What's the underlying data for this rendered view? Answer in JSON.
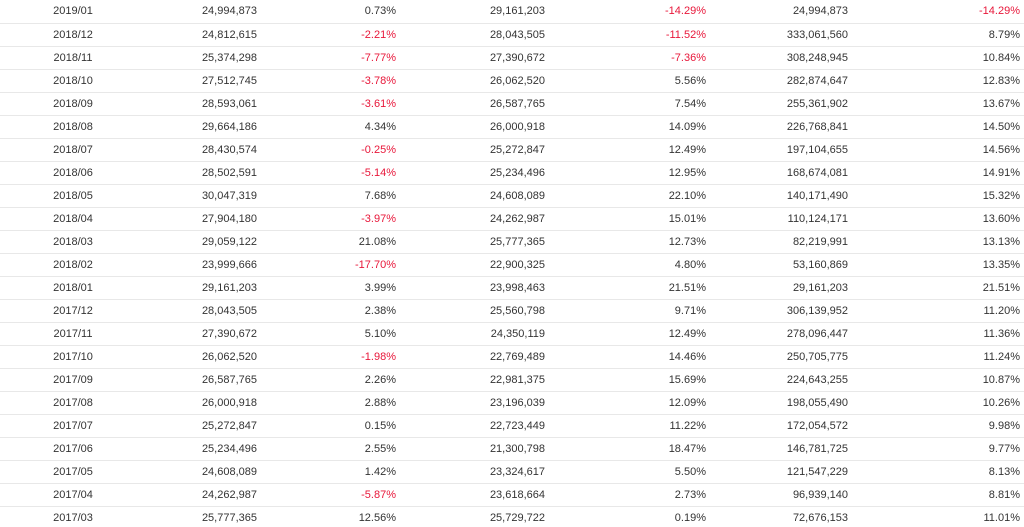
{
  "colors": {
    "negative": "#e8173a",
    "text": "#333333",
    "row_border": "#e8e8e8"
  },
  "table": {
    "rows": [
      {
        "month": "2019/01",
        "v1": "24,994,873",
        "p1": "0.73%",
        "v2": "29,161,203",
        "p2": "-14.29%",
        "v3": "24,994,873",
        "p3": "-14.29%"
      },
      {
        "month": "2018/12",
        "v1": "24,812,615",
        "p1": "-2.21%",
        "v2": "28,043,505",
        "p2": "-11.52%",
        "v3": "333,061,560",
        "p3": "8.79%"
      },
      {
        "month": "2018/11",
        "v1": "25,374,298",
        "p1": "-7.77%",
        "v2": "27,390,672",
        "p2": "-7.36%",
        "v3": "308,248,945",
        "p3": "10.84%"
      },
      {
        "month": "2018/10",
        "v1": "27,512,745",
        "p1": "-3.78%",
        "v2": "26,062,520",
        "p2": "5.56%",
        "v3": "282,874,647",
        "p3": "12.83%"
      },
      {
        "month": "2018/09",
        "v1": "28,593,061",
        "p1": "-3.61%",
        "v2": "26,587,765",
        "p2": "7.54%",
        "v3": "255,361,902",
        "p3": "13.67%"
      },
      {
        "month": "2018/08",
        "v1": "29,664,186",
        "p1": "4.34%",
        "v2": "26,000,918",
        "p2": "14.09%",
        "v3": "226,768,841",
        "p3": "14.50%"
      },
      {
        "month": "2018/07",
        "v1": "28,430,574",
        "p1": "-0.25%",
        "v2": "25,272,847",
        "p2": "12.49%",
        "v3": "197,104,655",
        "p3": "14.56%"
      },
      {
        "month": "2018/06",
        "v1": "28,502,591",
        "p1": "-5.14%",
        "v2": "25,234,496",
        "p2": "12.95%",
        "v3": "168,674,081",
        "p3": "14.91%"
      },
      {
        "month": "2018/05",
        "v1": "30,047,319",
        "p1": "7.68%",
        "v2": "24,608,089",
        "p2": "22.10%",
        "v3": "140,171,490",
        "p3": "15.32%"
      },
      {
        "month": "2018/04",
        "v1": "27,904,180",
        "p1": "-3.97%",
        "v2": "24,262,987",
        "p2": "15.01%",
        "v3": "110,124,171",
        "p3": "13.60%"
      },
      {
        "month": "2018/03",
        "v1": "29,059,122",
        "p1": "21.08%",
        "v2": "25,777,365",
        "p2": "12.73%",
        "v3": "82,219,991",
        "p3": "13.13%"
      },
      {
        "month": "2018/02",
        "v1": "23,999,666",
        "p1": "-17.70%",
        "v2": "22,900,325",
        "p2": "4.80%",
        "v3": "53,160,869",
        "p3": "13.35%"
      },
      {
        "month": "2018/01",
        "v1": "29,161,203",
        "p1": "3.99%",
        "v2": "23,998,463",
        "p2": "21.51%",
        "v3": "29,161,203",
        "p3": "21.51%"
      },
      {
        "month": "2017/12",
        "v1": "28,043,505",
        "p1": "2.38%",
        "v2": "25,560,798",
        "p2": "9.71%",
        "v3": "306,139,952",
        "p3": "11.20%"
      },
      {
        "month": "2017/11",
        "v1": "27,390,672",
        "p1": "5.10%",
        "v2": "24,350,119",
        "p2": "12.49%",
        "v3": "278,096,447",
        "p3": "11.36%"
      },
      {
        "month": "2017/10",
        "v1": "26,062,520",
        "p1": "-1.98%",
        "v2": "22,769,489",
        "p2": "14.46%",
        "v3": "250,705,775",
        "p3": "11.24%"
      },
      {
        "month": "2017/09",
        "v1": "26,587,765",
        "p1": "2.26%",
        "v2": "22,981,375",
        "p2": "15.69%",
        "v3": "224,643,255",
        "p3": "10.87%"
      },
      {
        "month": "2017/08",
        "v1": "26,000,918",
        "p1": "2.88%",
        "v2": "23,196,039",
        "p2": "12.09%",
        "v3": "198,055,490",
        "p3": "10.26%"
      },
      {
        "month": "2017/07",
        "v1": "25,272,847",
        "p1": "0.15%",
        "v2": "22,723,449",
        "p2": "11.22%",
        "v3": "172,054,572",
        "p3": "9.98%"
      },
      {
        "month": "2017/06",
        "v1": "25,234,496",
        "p1": "2.55%",
        "v2": "21,300,798",
        "p2": "18.47%",
        "v3": "146,781,725",
        "p3": "9.77%"
      },
      {
        "month": "2017/05",
        "v1": "24,608,089",
        "p1": "1.42%",
        "v2": "23,324,617",
        "p2": "5.50%",
        "v3": "121,547,229",
        "p3": "8.13%"
      },
      {
        "month": "2017/04",
        "v1": "24,262,987",
        "p1": "-5.87%",
        "v2": "23,618,664",
        "p2": "2.73%",
        "v3": "96,939,140",
        "p3": "8.81%"
      },
      {
        "month": "2017/03",
        "v1": "25,777,365",
        "p1": "12.56%",
        "v2": "25,729,722",
        "p2": "0.19%",
        "v3": "72,676,153",
        "p3": "11.01%"
      }
    ]
  }
}
